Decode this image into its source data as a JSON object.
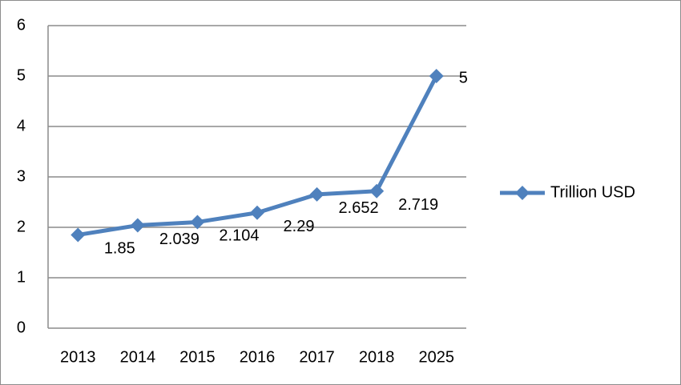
{
  "chart_data": {
    "type": "line",
    "categories": [
      "2013",
      "2014",
      "2015",
      "2016",
      "2017",
      "2018",
      "2025"
    ],
    "series": [
      {
        "name": "Trillion USD",
        "color": "#4f81bd",
        "values": [
          1.85,
          2.039,
          2.104,
          2.29,
          2.652,
          2.719,
          5
        ]
      }
    ],
    "ylim": [
      0,
      6
    ],
    "yticks": [
      0,
      1,
      2,
      3,
      4,
      5,
      6
    ],
    "grid": true,
    "legend": "right",
    "data_labels": true
  }
}
